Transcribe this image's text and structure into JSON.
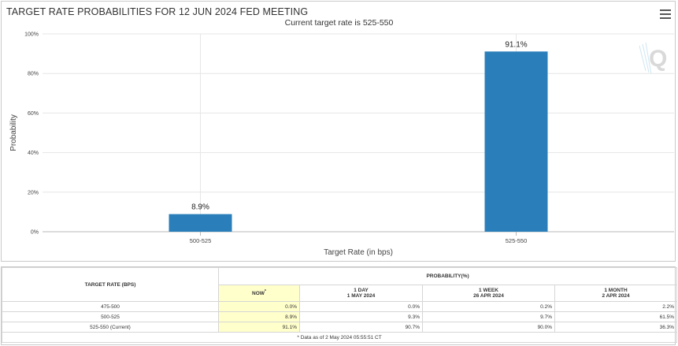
{
  "chart_title": "TARGET RATE PROBABILITIES FOR 12 JUN 2024 FED MEETING",
  "chart_subtitle": "Current target rate is 525-550",
  "chart_data": {
    "type": "bar",
    "title": "TARGET RATE PROBABILITIES FOR 12 JUN 2024 FED MEETING",
    "subtitle": "Current target rate is 525-550",
    "categories": [
      "500-525",
      "525-550"
    ],
    "values": [
      8.9,
      91.1
    ],
    "value_labels": [
      "8.9%",
      "91.1%"
    ],
    "xlabel": "Target Rate (in bps)",
    "ylabel": "Probability",
    "ylim": [
      0,
      100
    ],
    "yticks": [
      0,
      20,
      40,
      60,
      80,
      100
    ],
    "ytick_labels": [
      "0%",
      "20%",
      "40%",
      "60%",
      "80%",
      "100%"
    ],
    "grid": true,
    "bar_color": "#2a7fba"
  },
  "table": {
    "target_rate_header": "TARGET RATE (BPS)",
    "probability_header": "PROBABILITY(%)",
    "columns": [
      {
        "line1": "NOW",
        "line2": "",
        "marker": "*"
      },
      {
        "line1": "1 DAY",
        "line2": "1 MAY 2024",
        "marker": ""
      },
      {
        "line1": "1 WEEK",
        "line2": "26 APR 2024",
        "marker": ""
      },
      {
        "line1": "1 MONTH",
        "line2": "2 APR 2024",
        "marker": ""
      }
    ],
    "rows": [
      {
        "rate": "475-500",
        "values": [
          "0.0%",
          "0.0%",
          "0.2%",
          "2.2%"
        ]
      },
      {
        "rate": "500-525",
        "values": [
          "8.9%",
          "9.3%",
          "9.7%",
          "61.5%"
        ]
      },
      {
        "rate": "525-550 (Current)",
        "values": [
          "91.1%",
          "90.7%",
          "90.0%",
          "36.3%"
        ]
      }
    ],
    "footnote": "* Data as of 2 May 2024 05:55:51 CT"
  }
}
